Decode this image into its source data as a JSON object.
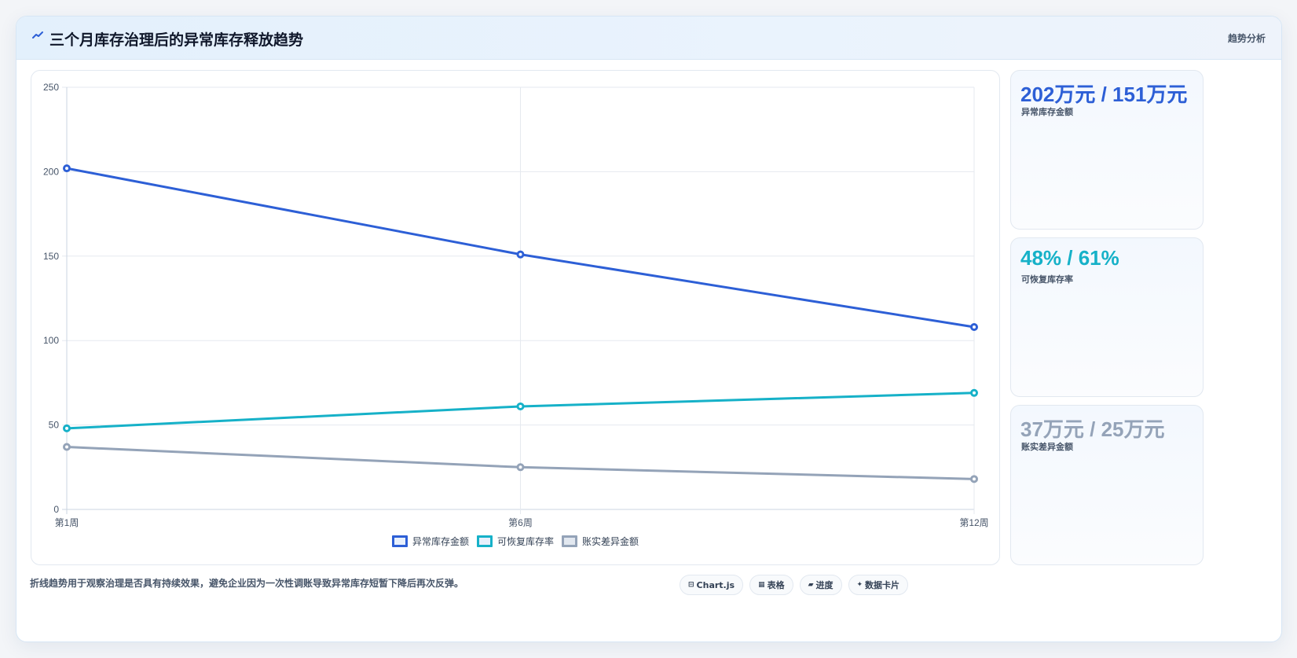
{
  "header": {
    "title": "三个月库存治理后的异常库存释放趋势",
    "link_label": "趋势分析"
  },
  "chart_data": {
    "type": "line",
    "categories": [
      "第1周",
      "第6周",
      "第12周"
    ],
    "y_ticks": [
      "0",
      "50",
      "100",
      "150",
      "200",
      "250"
    ],
    "ylim": [
      0,
      250
    ],
    "grid": true,
    "legend_position": "bottom",
    "title": "",
    "xlabel": "",
    "ylabel": "",
    "series": [
      {
        "name": "异常库存金额",
        "color": "#2d5fd6",
        "values": [
          202,
          151,
          108
        ]
      },
      {
        "name": "可恢复库存率",
        "color": "#16b1c8",
        "values": [
          48,
          61,
          69
        ]
      },
      {
        "name": "账实差异金额",
        "color": "#94a3b8",
        "values": [
          37,
          25,
          18
        ]
      }
    ]
  },
  "kpis": [
    {
      "value": "202万元 / 151万元",
      "label": "异常库存金额",
      "color": "#2d5fd6"
    },
    {
      "value": "48% / 61%",
      "label": "可恢复库存率",
      "color": "#16b1c8"
    },
    {
      "value": "37万元 / 25万元",
      "label": "账实差异金额",
      "color": "#94a3b8"
    }
  ],
  "footnote": "折线趋势用于观察治理是否具有持续效果，避免企业因为一次性调账导致异常库存短暂下降后再次反弹。",
  "chips": [
    {
      "icon": "⊟",
      "label": "Chart.js"
    },
    {
      "icon": "▦",
      "label": "表格"
    },
    {
      "icon": "▰",
      "label": "进度"
    },
    {
      "icon": "✦",
      "label": "数据卡片"
    }
  ]
}
